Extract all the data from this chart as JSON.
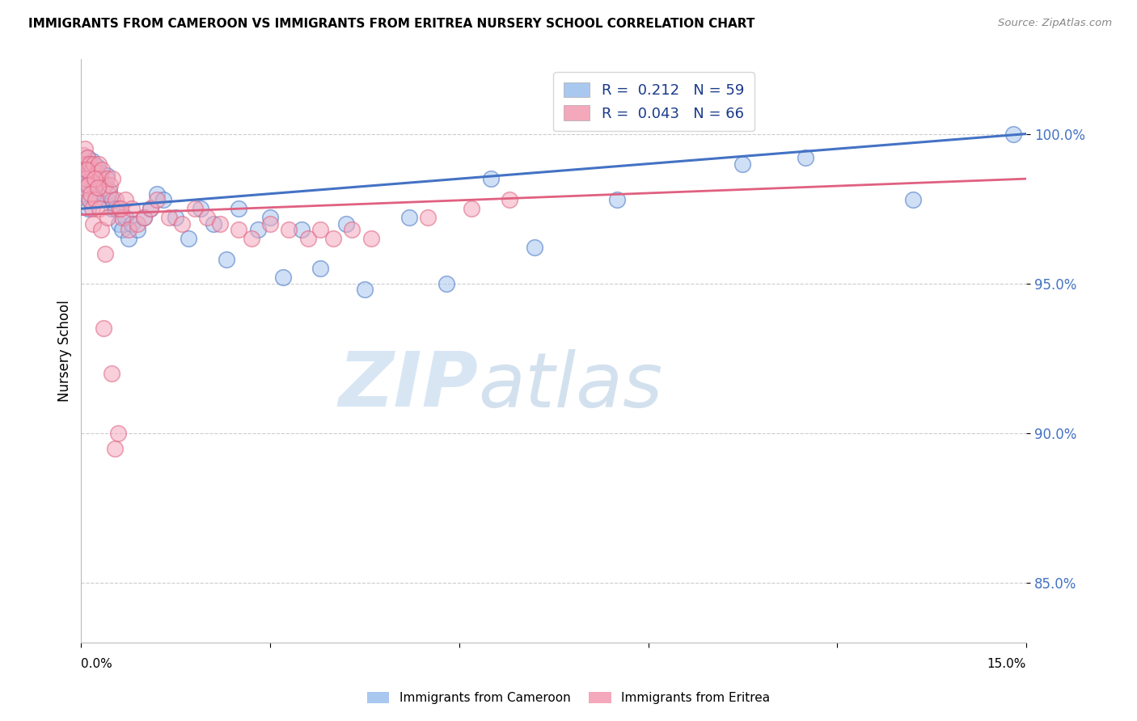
{
  "title": "IMMIGRANTS FROM CAMEROON VS IMMIGRANTS FROM ERITREA NURSERY SCHOOL CORRELATION CHART",
  "source": "Source: ZipAtlas.com",
  "ylabel": "Nursery School",
  "xlim": [
    0.0,
    15.0
  ],
  "ylim": [
    83.0,
    102.5
  ],
  "yticks": [
    85.0,
    90.0,
    95.0,
    100.0
  ],
  "ytick_labels": [
    "85.0%",
    "90.0%",
    "95.0%",
    "100.0%"
  ],
  "xticks": [
    0.0,
    3.0,
    6.0,
    9.0,
    12.0,
    15.0
  ],
  "legend_blue_r": "0.212",
  "legend_blue_n": "59",
  "legend_pink_r": "0.043",
  "legend_pink_n": "66",
  "blue_color": "#A8C8F0",
  "pink_color": "#F4A8BC",
  "blue_line_color": "#4472C4",
  "pink_line_color": "#E06080",
  "watermark_zip": "ZIP",
  "watermark_atlas": "atlas",
  "cameroon_x": [
    0.05,
    0.07,
    0.08,
    0.1,
    0.12,
    0.13,
    0.15,
    0.17,
    0.18,
    0.2,
    0.22,
    0.25,
    0.28,
    0.3,
    0.32,
    0.35,
    0.38,
    0.4,
    0.42,
    0.45,
    0.48,
    0.5,
    0.55,
    0.6,
    0.65,
    0.7,
    0.75,
    0.8,
    0.9,
    1.0,
    1.1,
    1.2,
    1.3,
    1.5,
    1.7,
    1.9,
    2.1,
    2.3,
    2.5,
    2.8,
    3.0,
    3.2,
    3.5,
    3.8,
    4.2,
    4.5,
    5.2,
    5.8,
    6.5,
    7.2,
    8.5,
    10.5,
    11.5,
    13.2,
    14.8,
    0.06,
    0.09,
    0.11,
    0.14
  ],
  "cameroon_y": [
    98.8,
    99.0,
    98.5,
    99.2,
    98.7,
    99.0,
    98.5,
    98.8,
    99.1,
    98.3,
    98.6,
    98.9,
    98.2,
    98.5,
    98.7,
    98.0,
    98.3,
    98.6,
    97.8,
    98.1,
    97.5,
    97.8,
    97.5,
    97.0,
    96.8,
    97.2,
    96.5,
    97.0,
    96.8,
    97.2,
    97.5,
    98.0,
    97.8,
    97.2,
    96.5,
    97.5,
    97.0,
    95.8,
    97.5,
    96.8,
    97.2,
    95.2,
    96.8,
    95.5,
    97.0,
    94.8,
    97.2,
    95.0,
    98.5,
    96.2,
    97.8,
    99.0,
    99.2,
    97.8,
    100.0,
    98.0,
    98.3,
    97.5,
    97.8
  ],
  "eritrea_x": [
    0.04,
    0.06,
    0.08,
    0.1,
    0.12,
    0.14,
    0.16,
    0.18,
    0.2,
    0.22,
    0.25,
    0.28,
    0.3,
    0.33,
    0.36,
    0.4,
    0.43,
    0.46,
    0.5,
    0.55,
    0.6,
    0.65,
    0.7,
    0.75,
    0.8,
    0.9,
    1.0,
    1.1,
    1.2,
    1.4,
    1.6,
    1.8,
    2.0,
    2.2,
    2.5,
    2.7,
    3.0,
    3.3,
    3.6,
    3.8,
    4.0,
    4.3,
    4.6,
    5.5,
    6.2,
    6.8,
    0.05,
    0.07,
    0.09,
    0.11,
    0.13,
    0.15,
    0.17,
    0.19,
    0.21,
    0.23,
    0.26,
    0.29,
    0.32,
    0.35,
    0.38,
    0.42,
    0.48,
    0.53,
    0.58,
    0.63
  ],
  "eritrea_y": [
    99.3,
    99.5,
    99.0,
    99.2,
    98.8,
    99.0,
    98.5,
    98.8,
    99.0,
    98.3,
    98.7,
    99.0,
    98.5,
    98.8,
    98.2,
    98.5,
    98.0,
    98.3,
    98.5,
    97.8,
    97.5,
    97.2,
    97.8,
    96.8,
    97.5,
    97.0,
    97.2,
    97.5,
    97.8,
    97.2,
    97.0,
    97.5,
    97.2,
    97.0,
    96.8,
    96.5,
    97.0,
    96.8,
    96.5,
    96.8,
    96.5,
    96.8,
    96.5,
    97.2,
    97.5,
    97.8,
    98.2,
    98.5,
    98.8,
    98.3,
    97.8,
    98.0,
    97.5,
    97.0,
    98.5,
    97.8,
    98.2,
    97.5,
    96.8,
    93.5,
    96.0,
    97.2,
    92.0,
    89.5,
    90.0,
    97.5
  ]
}
